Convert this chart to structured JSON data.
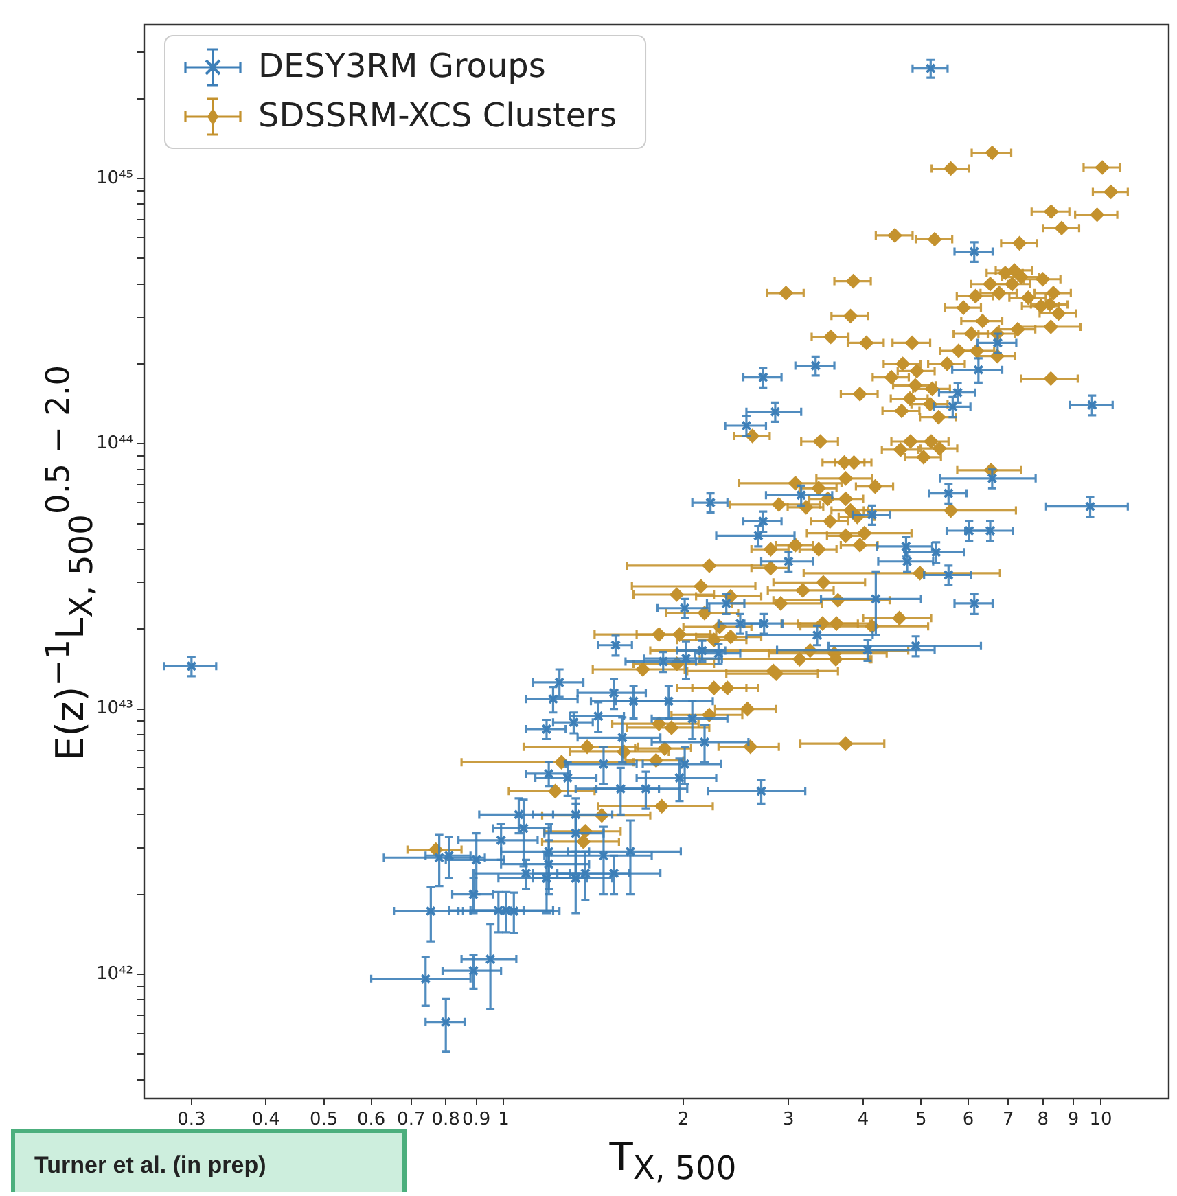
{
  "chart_data": {
    "type": "scatter",
    "xlabel": "T$_{X, 500}$",
    "ylabel": "E(z)$^{−1}$L$_{X, 500}$$^{0.5 − 2.0}$",
    "annotations": [
      "Turner et al. (in prep)"
    ],
    "log": "xy",
    "legend": "top left",
    "xlim": [
      0.25,
      13
    ],
    "ylim": [
      3.4e+41,
      3.8e+45
    ],
    "xticks": [
      0.3,
      0.4,
      0.5,
      0.6,
      0.7,
      0.8,
      0.9,
      1,
      2,
      3,
      4,
      5,
      6,
      7,
      8,
      9,
      10
    ],
    "yticks": [
      {
        "value": 4e+41,
        "label": null
      },
      {
        "value": 5e+41,
        "label": null
      },
      {
        "value": 6e+41,
        "label": null
      },
      {
        "value": 7e+41,
        "label": null
      },
      {
        "value": 8e+41,
        "label": null
      },
      {
        "value": 9e+41,
        "label": null
      },
      {
        "value": 1e+42,
        "label": "10⁴²"
      },
      {
        "value": 2e+42,
        "label": null
      },
      {
        "value": 3e+42,
        "label": null
      },
      {
        "value": 4e+42,
        "label": null
      },
      {
        "value": 5e+42,
        "label": null
      },
      {
        "value": 6e+42,
        "label": null
      },
      {
        "value": 7e+42,
        "label": null
      },
      {
        "value": 8e+42,
        "label": null
      },
      {
        "value": 9e+42,
        "label": null
      },
      {
        "value": 1e+43,
        "label": "10⁴³"
      },
      {
        "value": 2e+43,
        "label": null
      },
      {
        "value": 3e+43,
        "label": null
      },
      {
        "value": 4e+43,
        "label": null
      },
      {
        "value": 5e+43,
        "label": null
      },
      {
        "value": 6e+43,
        "label": null
      },
      {
        "value": 7e+43,
        "label": null
      },
      {
        "value": 8e+43,
        "label": null
      },
      {
        "value": 9e+43,
        "label": null
      },
      {
        "value": 1e+44,
        "label": "10⁴⁴"
      },
      {
        "value": 2e+44,
        "label": null
      },
      {
        "value": 3e+44,
        "label": null
      },
      {
        "value": 4e+44,
        "label": null
      },
      {
        "value": 5e+44,
        "label": null
      },
      {
        "value": 6e+44,
        "label": null
      },
      {
        "value": 7e+44,
        "label": null
      },
      {
        "value": 8e+44,
        "label": null
      },
      {
        "value": 9e+44,
        "label": null
      },
      {
        "value": 1e+45,
        "label": "10⁴⁵"
      },
      {
        "value": 2e+45,
        "label": null
      },
      {
        "value": 3e+45,
        "label": null
      }
    ],
    "series": [
      {
        "name": "DESY3RM Groups",
        "color": "#3d7fb8",
        "marker": "cross",
        "x": [
          0.3,
          5.19,
          6.14,
          3.33,
          2.72,
          2.85,
          2.55,
          6.72,
          6.24,
          5.76,
          5.65,
          9.67,
          9.6,
          6.58,
          5.56,
          6.02,
          6.53,
          4.72,
          5.3,
          4.74,
          5.56,
          4.2,
          6.14,
          4.07,
          4.9,
          3.15,
          2.72,
          2.67,
          3.0,
          4.14,
          2.22,
          2.01,
          2.36,
          2.49,
          2.73,
          3.35,
          1.54,
          1.85,
          2.29,
          2.02,
          1.24,
          1.21,
          1.18,
          1.31,
          1.44,
          1.53,
          1.65,
          1.89,
          2.07,
          2.17,
          2.7,
          2.01,
          1.97,
          1.73,
          1.58,
          1.57,
          1.19,
          1.28,
          1.47,
          1.06,
          1.08,
          0.99,
          0.9,
          0.81,
          0.78,
          1.19,
          1.19,
          1.32,
          1.32,
          1.47,
          1.63,
          1.09,
          1.18,
          1.32,
          1.37,
          1.53,
          0.89,
          0.755,
          0.98,
          1.01,
          1.04,
          0.95,
          0.89,
          0.74,
          0.8,
          2.15
        ],
        "values": [
          1.45e+43,
          2.6e+45,
          5.3e+44,
          1.97e+44,
          1.78e+44,
          1.32e+44,
          1.17e+44,
          2.4e+44,
          1.9e+44,
          1.56e+44,
          1.38e+44,
          1.4e+44,
          5.8e+43,
          7.4e+43,
          6.5e+43,
          4.7e+43,
          4.7e+43,
          4.1e+43,
          3.9e+43,
          3.6e+43,
          3.2e+43,
          2.6e+43,
          2.5e+43,
          1.67e+43,
          1.73e+43,
          6.4e+43,
          5.1e+43,
          4.5e+43,
          3.6e+43,
          5.4e+43,
          6e+43,
          2.4e+43,
          2.5e+43,
          2.1e+43,
          2.1e+43,
          1.9e+43,
          1.74e+43,
          1.51e+43,
          1.62e+43,
          1.55e+43,
          1.26e+43,
          1.09e+43,
          8.4e+42,
          8.9e+42,
          9.4e+42,
          1.15e+43,
          1.07e+43,
          1.07e+43,
          9.2e+42,
          7.5e+42,
          4.9e+42,
          6.2e+42,
          5.5e+42,
          5e+42,
          7.8e+42,
          5e+42,
          5.7e+42,
          5.5e+42,
          6.2e+42,
          4e+42,
          3.55e+42,
          3.2e+42,
          2.7e+42,
          2.8e+42,
          2.75e+42,
          2.9e+42,
          2.6e+42,
          4e+42,
          3.4e+42,
          2.8e+42,
          2.9e+42,
          2.4e+42,
          2.3e+42,
          2.3e+42,
          2.4e+42,
          2.4e+42,
          2e+42,
          1.73e+42,
          1.74e+42,
          1.74e+42,
          1.73e+42,
          1.14e+42,
          1.03e+42,
          9.6e+41,
          6.6e+41,
          1.66e+43
        ],
        "xerrors": [
          0.03,
          0.35,
          0.45,
          0.25,
          0.2,
          0.3,
          0.2,
          0.5,
          0.6,
          0.4,
          0.4,
          0.8,
          1.5,
          1.2,
          0.4,
          0.5,
          0.6,
          0.5,
          0.6,
          0.5,
          0.5,
          0.8,
          0.45,
          1.2,
          1.4,
          0.4,
          0.2,
          0.4,
          0.3,
          0.3,
          0.15,
          0.2,
          0.17,
          0.2,
          0.2,
          0.8,
          0.1,
          0.25,
          0.2,
          0.3,
          0.12,
          0.12,
          0.09,
          0.1,
          0.15,
          0.2,
          0.25,
          0.35,
          0.3,
          0.4,
          0.5,
          0.3,
          0.3,
          0.3,
          0.25,
          0.25,
          0.1,
          0.15,
          0.2,
          0.15,
          0.12,
          0.15,
          0.1,
          0.07,
          0.15,
          0.2,
          0.2,
          0.2,
          0.15,
          0.3,
          0.35,
          0.2,
          0.2,
          0.2,
          0.25,
          0.3,
          0.07,
          0.1,
          0.1,
          0.2,
          0.2,
          0.1,
          0.1,
          0.14,
          0.06,
          0.2
        ],
        "errors": [
          1.2e+42,
          2e+44,
          4.5e+43,
          1.6e+43,
          1.5e+43,
          1.1e+43,
          1e+43,
          2e+43,
          2e+43,
          1.3e+43,
          1.2e+43,
          1.2e+43,
          5e+42,
          6e+42,
          5.5e+42,
          4e+42,
          4e+42,
          3.5e+42,
          3.5e+42,
          3e+42,
          2.7e+42,
          7e+42,
          2.2e+42,
          1.5e+42,
          1.5e+42,
          5.5e+42,
          4.5e+42,
          4e+42,
          3e+42,
          4.5e+42,
          5e+42,
          2e+42,
          2.2e+42,
          1.8e+42,
          1.8e+42,
          1.6e+42,
          1.5e+42,
          1.3e+42,
          1.4e+42,
          2.5e+42,
          1.5e+42,
          1.2e+42,
          7e+41,
          8e+41,
          1.2e+42,
          1.5e+42,
          1.5e+42,
          1.5e+42,
          1.5e+42,
          1.2e+42,
          5e+41,
          1e+42,
          1e+42,
          8e+41,
          1.5e+42,
          1e+42,
          6e+41,
          8e+41,
          1e+42,
          6e+41,
          1e+42,
          5e+41,
          7e+41,
          5e+41,
          6e+41,
          8e+41,
          6e+41,
          6e+41,
          1e+42,
          8e+41,
          9e+41,
          3e+41,
          6e+41,
          6e+41,
          5e+41,
          4e+41,
          3e+41,
          4e+41,
          3e+41,
          3e+41,
          3e+41,
          4e+41,
          1.5e+41,
          2e+41,
          1.5e+41,
          1.5e+42
        ]
      },
      {
        "name": "SDSSRM-XCS Clusters",
        "color": "#c4922e",
        "marker": "diamond",
        "x": [
          6.58,
          5.61,
          10.06,
          10.4,
          8.26,
          9.86,
          8.6,
          4.52,
          5.27,
          7.31,
          2.97,
          3.85,
          3.81,
          3.53,
          4.05,
          4.83,
          4.66,
          4.46,
          4.92,
          4.89,
          5.22,
          4.79,
          4.64,
          5.18,
          5.35,
          3.95,
          5.53,
          5.78,
          6.2,
          6.07,
          6.34,
          6.71,
          6.71,
          5.89,
          6.17,
          6.53,
          6.76,
          6.92,
          7.17,
          7.36,
          7.11,
          7.56,
          8.0,
          8.33,
          7.94,
          8.22,
          8.5,
          7.26,
          8.25,
          8.25,
          3.39,
          2.61,
          3.72,
          3.86,
          4.8,
          4.62,
          5.2,
          5.37,
          5.05,
          6.55,
          5.61,
          4.19,
          3.74,
          3.74,
          3.08,
          3.37,
          3.49,
          3.21,
          2.89,
          3.81,
          3.91,
          3.52,
          4.02,
          3.74,
          3.95,
          3.37,
          3.08,
          2.8,
          2.8,
          4.98,
          3.63,
          4.6,
          3.61,
          4.14,
          3.42,
          3.58,
          3.6,
          3.74,
          2.21,
          2.14,
          1.95,
          2.4,
          2.17,
          2.91,
          3.43,
          3.17,
          1.82,
          1.97,
          2.3,
          2.4,
          2.25,
          3.26,
          3.13,
          2.83,
          2.86,
          1.71,
          1.95,
          2.25,
          2.37,
          2.56,
          2.21,
          1.82,
          1.91,
          2.59,
          1.86,
          1.8,
          1.38,
          1.25,
          1.59,
          1.84,
          1.46,
          1.37,
          1.22,
          0.77,
          1.36
        ],
        "values": [
          1.25e+45,
          1.09e+45,
          1.1e+45,
          8.9e+44,
          7.5e+44,
          7.3e+44,
          6.5e+44,
          6.1e+44,
          5.9e+44,
          5.7e+44,
          3.7e+44,
          4.1e+44,
          3.03e+44,
          2.53e+44,
          2.4e+44,
          2.4e+44,
          2e+44,
          1.78e+44,
          1.88e+44,
          1.66e+44,
          1.61e+44,
          1.48e+44,
          1.33e+44,
          1.41e+44,
          1.26e+44,
          1.54e+44,
          2e+44,
          2.24e+44,
          2.24e+44,
          2.6e+44,
          2.9e+44,
          2.6e+44,
          2.14e+44,
          3.26e+44,
          3.6e+44,
          4e+44,
          3.7e+44,
          4.4e+44,
          4.5e+44,
          4.25e+44,
          4e+44,
          3.55e+44,
          4.17e+44,
          3.7e+44,
          3.3e+44,
          3.35e+44,
          3.1e+44,
          2.7e+44,
          2.76e+44,
          1.76e+44,
          1.02e+44,
          1.07e+44,
          8.5e+43,
          8.5e+43,
          1.02e+44,
          9.5e+43,
          1.02e+44,
          9.6e+43,
          8.9e+43,
          7.95e+43,
          5.6e+43,
          6.9e+43,
          7.4e+43,
          6.2e+43,
          7.1e+43,
          6.8e+43,
          6.2e+43,
          5.76e+43,
          5.9e+43,
          5.6e+43,
          5.3e+43,
          5.1e+43,
          4.6e+43,
          4.5e+43,
          4.15e+43,
          4e+43,
          4.15e+43,
          4e+43,
          3.4e+43,
          3.25e+43,
          2.57e+43,
          2.2e+43,
          2.1e+43,
          2.05e+43,
          2.1e+43,
          1.62e+43,
          1.54e+43,
          7.4e+42,
          3.47e+43,
          2.9e+43,
          2.7e+43,
          2.66e+43,
          2.3e+43,
          2.5e+43,
          3e+43,
          2.8e+43,
          1.91e+43,
          1.91e+43,
          2.04e+43,
          1.87e+43,
          1.82e+43,
          1.66e+43,
          1.54e+43,
          1.39e+43,
          1.36e+43,
          1.41e+43,
          1.48e+43,
          1.2e+43,
          1.2e+43,
          1e+43,
          9.5e+42,
          8.8e+42,
          8.5e+42,
          7.2e+42,
          7.1e+42,
          6.4e+42,
          7.2e+42,
          6.3e+42,
          6.9e+42,
          4.3e+42,
          3.97e+42,
          3.46e+42,
          4.9e+42,
          2.95e+42,
          3.16e+42
        ],
        "xerrors": [
          0.5,
          0.4,
          0.7,
          0.7,
          0.6,
          0.8,
          0.6,
          0.32,
          0.37,
          0.5,
          0.21,
          0.27,
          0.27,
          0.25,
          0.28,
          0.35,
          0.33,
          0.31,
          0.35,
          0.4,
          0.37,
          0.34,
          0.33,
          0.36,
          0.37,
          0.28,
          0.39,
          0.4,
          0.43,
          0.4,
          0.5,
          0.47,
          0.47,
          0.41,
          0.43,
          0.46,
          0.47,
          0.48,
          0.5,
          0.52,
          0.5,
          0.53,
          0.56,
          0.58,
          0.56,
          0.58,
          0.6,
          0.51,
          1.0,
          0.9,
          0.24,
          0.18,
          0.3,
          0.27,
          0.34,
          0.32,
          0.36,
          0.38,
          0.35,
          0.8,
          1.6,
          0.3,
          0.4,
          0.26,
          0.6,
          0.24,
          0.24,
          0.22,
          0.5,
          0.27,
          0.27,
          0.25,
          0.8,
          0.26,
          0.28,
          0.24,
          0.22,
          0.2,
          0.2,
          1.8,
          0.8,
          0.6,
          0.5,
          1.0,
          0.5,
          0.8,
          0.5,
          0.6,
          0.6,
          0.5,
          0.3,
          0.3,
          0.3,
          0.5,
          0.6,
          0.4,
          0.4,
          0.3,
          0.3,
          0.3,
          0.3,
          1.5,
          1.0,
          0.8,
          0.5,
          0.3,
          0.3,
          0.3,
          0.3,
          0.3,
          0.3,
          0.3,
          0.3,
          0.3,
          0.2,
          0.2,
          0.3,
          0.4,
          0.3,
          0.4,
          0.3,
          0.2,
          0.2,
          0.08,
          0.2
        ]
      }
    ]
  }
}
